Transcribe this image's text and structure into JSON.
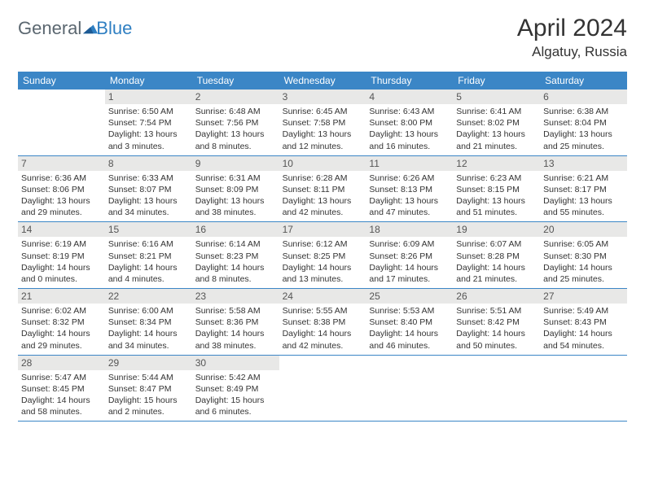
{
  "brand": {
    "part1": "General",
    "part2": "Blue"
  },
  "title": "April 2024",
  "location": "Algatuy, Russia",
  "colors": {
    "header_bg": "#3b86c6",
    "daynum_bg": "#e8e8e7",
    "text": "#333333",
    "brand_gray": "#5b6770",
    "brand_blue": "#2f7fc2",
    "row_border": "#3b86c6"
  },
  "dow": [
    "Sunday",
    "Monday",
    "Tuesday",
    "Wednesday",
    "Thursday",
    "Friday",
    "Saturday"
  ],
  "weeks": [
    [
      {
        "n": "",
        "lines": []
      },
      {
        "n": "1",
        "lines": [
          "Sunrise: 6:50 AM",
          "Sunset: 7:54 PM",
          "Daylight: 13 hours",
          "and 3 minutes."
        ]
      },
      {
        "n": "2",
        "lines": [
          "Sunrise: 6:48 AM",
          "Sunset: 7:56 PM",
          "Daylight: 13 hours",
          "and 8 minutes."
        ]
      },
      {
        "n": "3",
        "lines": [
          "Sunrise: 6:45 AM",
          "Sunset: 7:58 PM",
          "Daylight: 13 hours",
          "and 12 minutes."
        ]
      },
      {
        "n": "4",
        "lines": [
          "Sunrise: 6:43 AM",
          "Sunset: 8:00 PM",
          "Daylight: 13 hours",
          "and 16 minutes."
        ]
      },
      {
        "n": "5",
        "lines": [
          "Sunrise: 6:41 AM",
          "Sunset: 8:02 PM",
          "Daylight: 13 hours",
          "and 21 minutes."
        ]
      },
      {
        "n": "6",
        "lines": [
          "Sunrise: 6:38 AM",
          "Sunset: 8:04 PM",
          "Daylight: 13 hours",
          "and 25 minutes."
        ]
      }
    ],
    [
      {
        "n": "7",
        "lines": [
          "Sunrise: 6:36 AM",
          "Sunset: 8:06 PM",
          "Daylight: 13 hours",
          "and 29 minutes."
        ]
      },
      {
        "n": "8",
        "lines": [
          "Sunrise: 6:33 AM",
          "Sunset: 8:07 PM",
          "Daylight: 13 hours",
          "and 34 minutes."
        ]
      },
      {
        "n": "9",
        "lines": [
          "Sunrise: 6:31 AM",
          "Sunset: 8:09 PM",
          "Daylight: 13 hours",
          "and 38 minutes."
        ]
      },
      {
        "n": "10",
        "lines": [
          "Sunrise: 6:28 AM",
          "Sunset: 8:11 PM",
          "Daylight: 13 hours",
          "and 42 minutes."
        ]
      },
      {
        "n": "11",
        "lines": [
          "Sunrise: 6:26 AM",
          "Sunset: 8:13 PM",
          "Daylight: 13 hours",
          "and 47 minutes."
        ]
      },
      {
        "n": "12",
        "lines": [
          "Sunrise: 6:23 AM",
          "Sunset: 8:15 PM",
          "Daylight: 13 hours",
          "and 51 minutes."
        ]
      },
      {
        "n": "13",
        "lines": [
          "Sunrise: 6:21 AM",
          "Sunset: 8:17 PM",
          "Daylight: 13 hours",
          "and 55 minutes."
        ]
      }
    ],
    [
      {
        "n": "14",
        "lines": [
          "Sunrise: 6:19 AM",
          "Sunset: 8:19 PM",
          "Daylight: 14 hours",
          "and 0 minutes."
        ]
      },
      {
        "n": "15",
        "lines": [
          "Sunrise: 6:16 AM",
          "Sunset: 8:21 PM",
          "Daylight: 14 hours",
          "and 4 minutes."
        ]
      },
      {
        "n": "16",
        "lines": [
          "Sunrise: 6:14 AM",
          "Sunset: 8:23 PM",
          "Daylight: 14 hours",
          "and 8 minutes."
        ]
      },
      {
        "n": "17",
        "lines": [
          "Sunrise: 6:12 AM",
          "Sunset: 8:25 PM",
          "Daylight: 14 hours",
          "and 13 minutes."
        ]
      },
      {
        "n": "18",
        "lines": [
          "Sunrise: 6:09 AM",
          "Sunset: 8:26 PM",
          "Daylight: 14 hours",
          "and 17 minutes."
        ]
      },
      {
        "n": "19",
        "lines": [
          "Sunrise: 6:07 AM",
          "Sunset: 8:28 PM",
          "Daylight: 14 hours",
          "and 21 minutes."
        ]
      },
      {
        "n": "20",
        "lines": [
          "Sunrise: 6:05 AM",
          "Sunset: 8:30 PM",
          "Daylight: 14 hours",
          "and 25 minutes."
        ]
      }
    ],
    [
      {
        "n": "21",
        "lines": [
          "Sunrise: 6:02 AM",
          "Sunset: 8:32 PM",
          "Daylight: 14 hours",
          "and 29 minutes."
        ]
      },
      {
        "n": "22",
        "lines": [
          "Sunrise: 6:00 AM",
          "Sunset: 8:34 PM",
          "Daylight: 14 hours",
          "and 34 minutes."
        ]
      },
      {
        "n": "23",
        "lines": [
          "Sunrise: 5:58 AM",
          "Sunset: 8:36 PM",
          "Daylight: 14 hours",
          "and 38 minutes."
        ]
      },
      {
        "n": "24",
        "lines": [
          "Sunrise: 5:55 AM",
          "Sunset: 8:38 PM",
          "Daylight: 14 hours",
          "and 42 minutes."
        ]
      },
      {
        "n": "25",
        "lines": [
          "Sunrise: 5:53 AM",
          "Sunset: 8:40 PM",
          "Daylight: 14 hours",
          "and 46 minutes."
        ]
      },
      {
        "n": "26",
        "lines": [
          "Sunrise: 5:51 AM",
          "Sunset: 8:42 PM",
          "Daylight: 14 hours",
          "and 50 minutes."
        ]
      },
      {
        "n": "27",
        "lines": [
          "Sunrise: 5:49 AM",
          "Sunset: 8:43 PM",
          "Daylight: 14 hours",
          "and 54 minutes."
        ]
      }
    ],
    [
      {
        "n": "28",
        "lines": [
          "Sunrise: 5:47 AM",
          "Sunset: 8:45 PM",
          "Daylight: 14 hours",
          "and 58 minutes."
        ]
      },
      {
        "n": "29",
        "lines": [
          "Sunrise: 5:44 AM",
          "Sunset: 8:47 PM",
          "Daylight: 15 hours",
          "and 2 minutes."
        ]
      },
      {
        "n": "30",
        "lines": [
          "Sunrise: 5:42 AM",
          "Sunset: 8:49 PM",
          "Daylight: 15 hours",
          "and 6 minutes."
        ]
      },
      {
        "n": "",
        "lines": []
      },
      {
        "n": "",
        "lines": []
      },
      {
        "n": "",
        "lines": []
      },
      {
        "n": "",
        "lines": []
      }
    ]
  ]
}
